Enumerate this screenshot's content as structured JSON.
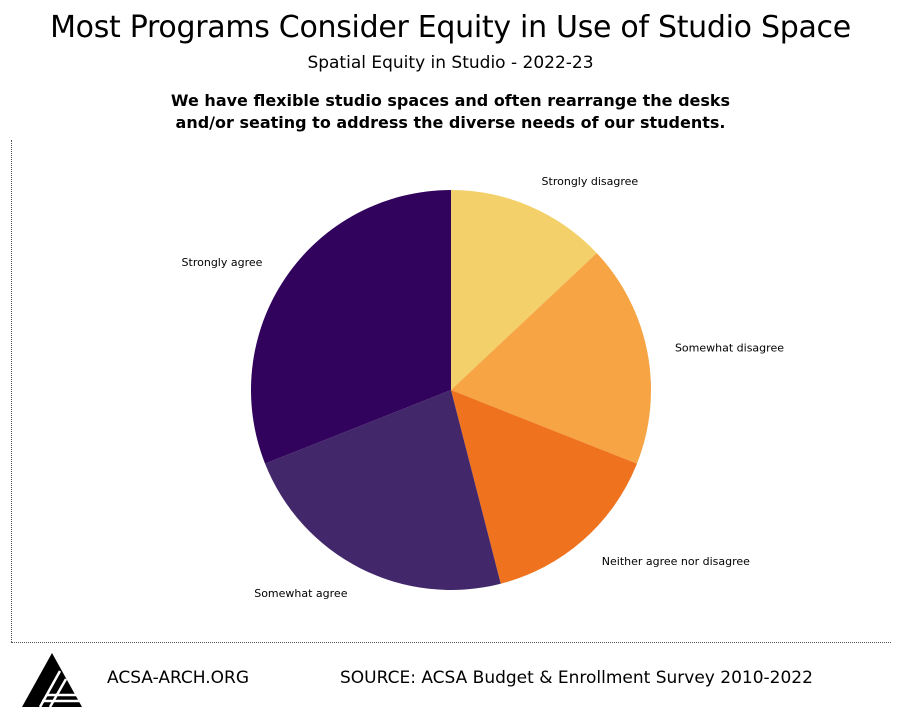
{
  "header": {
    "title": "Most Programs Consider Equity in Use of Studio Space",
    "subtitle": "Spatial Equity in Studio - 2022-23",
    "question_line1": "We have flexible studio spaces and often rearrange the desks",
    "question_line2": "and/or seating to address the diverse needs of our students."
  },
  "chart_data": {
    "type": "pie",
    "title": "Most Programs Consider Equity in Use of Studio Space",
    "subtitle": "Spatial Equity in Studio - 2022-23",
    "start_angle_deg": 0,
    "direction": "clockwise",
    "slices": [
      {
        "label": "Strongly disagree",
        "value": 13,
        "color": "#f3d069"
      },
      {
        "label": "Somewhat disagree",
        "value": 18,
        "color": "#f6a444"
      },
      {
        "label": "Neither agree nor disagree",
        "value": 15,
        "color": "#ef731e"
      },
      {
        "label": "Somewhat agree",
        "value": 23,
        "color": "#43276b"
      },
      {
        "label": "Strongly agree",
        "value": 31,
        "color": "#31035c"
      }
    ]
  },
  "footer": {
    "site": "ACSA-ARCH.ORG",
    "source": "SOURCE: ACSA Budget & Enrollment Survey 2010-2022",
    "logo_icon": "acsa-triangle-logo-icon"
  }
}
